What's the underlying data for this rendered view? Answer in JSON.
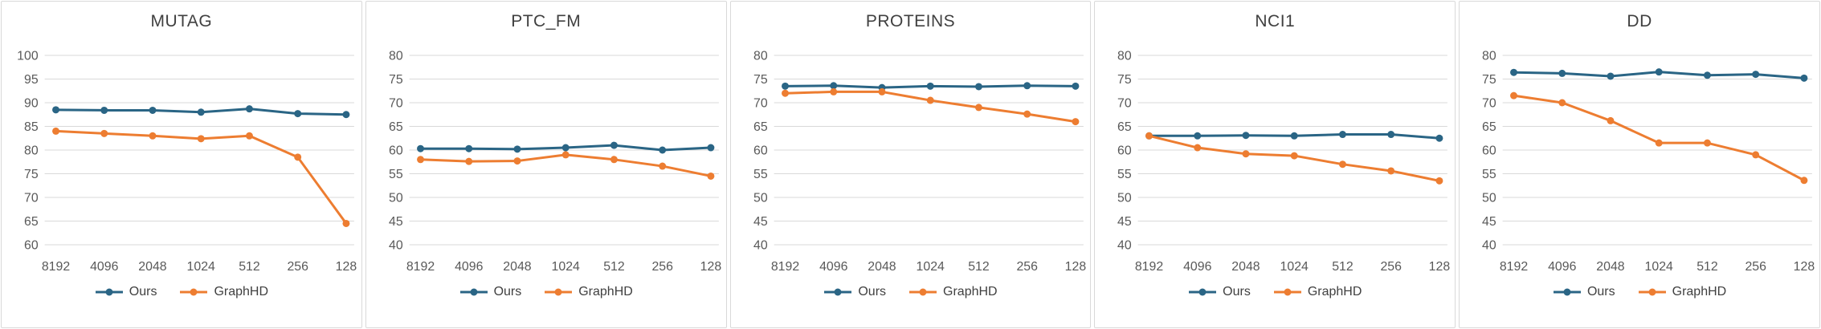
{
  "colors": {
    "ours": "#2a6585",
    "graphhd": "#ed7d31",
    "grid": "#d9d9d9",
    "tick": "#595959",
    "title": "#404040",
    "border": "#d9d9d9"
  },
  "chart_data": [
    {
      "type": "line",
      "title": "MUTAG",
      "categories": [
        "8192",
        "4096",
        "2048",
        "1024",
        "512",
        "256",
        "128"
      ],
      "series": [
        {
          "name": "Ours",
          "color_key": "ours",
          "values": [
            88.5,
            88.4,
            88.4,
            88.0,
            88.7,
            87.7,
            87.5
          ]
        },
        {
          "name": "GraphHD",
          "color_key": "graphhd",
          "values": [
            84.0,
            83.5,
            83.0,
            82.4,
            83.0,
            78.5,
            64.5
          ]
        }
      ],
      "ylim": [
        60,
        100
      ],
      "ytick_step": 5,
      "grid": true,
      "legend_position": "bottom"
    },
    {
      "type": "line",
      "title": "PTC_FM",
      "categories": [
        "8192",
        "4096",
        "2048",
        "1024",
        "512",
        "256",
        "128"
      ],
      "series": [
        {
          "name": "Ours",
          "color_key": "ours",
          "values": [
            60.3,
            60.3,
            60.2,
            60.5,
            61.0,
            60.0,
            60.5
          ]
        },
        {
          "name": "GraphHD",
          "color_key": "graphhd",
          "values": [
            58.0,
            57.6,
            57.7,
            59.0,
            58.0,
            56.6,
            54.5
          ]
        }
      ],
      "ylim": [
        40,
        80
      ],
      "ytick_step": 5,
      "grid": true,
      "legend_position": "bottom"
    },
    {
      "type": "line",
      "title": "PROTEINS",
      "categories": [
        "8192",
        "4096",
        "2048",
        "1024",
        "512",
        "256",
        "128"
      ],
      "series": [
        {
          "name": "Ours",
          "color_key": "ours",
          "values": [
            73.5,
            73.6,
            73.2,
            73.5,
            73.4,
            73.6,
            73.5
          ]
        },
        {
          "name": "GraphHD",
          "color_key": "graphhd",
          "values": [
            72.0,
            72.3,
            72.3,
            70.5,
            69.0,
            67.6,
            66.0
          ]
        }
      ],
      "ylim": [
        40,
        80
      ],
      "ytick_step": 5,
      "grid": true,
      "legend_position": "bottom"
    },
    {
      "type": "line",
      "title": "NCI1",
      "categories": [
        "8192",
        "4096",
        "2048",
        "1024",
        "512",
        "256",
        "128"
      ],
      "series": [
        {
          "name": "Ours",
          "color_key": "ours",
          "values": [
            63.0,
            63.0,
            63.1,
            63.0,
            63.3,
            63.3,
            62.5
          ]
        },
        {
          "name": "GraphHD",
          "color_key": "graphhd",
          "values": [
            63.0,
            60.5,
            59.2,
            58.8,
            57.0,
            55.6,
            53.5
          ]
        }
      ],
      "ylim": [
        40,
        80
      ],
      "ytick_step": 5,
      "grid": true,
      "legend_position": "bottom"
    },
    {
      "type": "line",
      "title": "DD",
      "categories": [
        "8192",
        "4096",
        "2048",
        "1024",
        "512",
        "256",
        "128"
      ],
      "series": [
        {
          "name": "Ours",
          "color_key": "ours",
          "values": [
            76.4,
            76.2,
            75.6,
            76.5,
            75.8,
            76.0,
            75.2
          ]
        },
        {
          "name": "GraphHD",
          "color_key": "graphhd",
          "values": [
            71.5,
            70.0,
            66.2,
            61.5,
            61.5,
            59.0,
            53.6
          ]
        }
      ],
      "ylim": [
        40,
        80
      ],
      "ytick_step": 5,
      "grid": true,
      "legend_position": "bottom"
    }
  ]
}
